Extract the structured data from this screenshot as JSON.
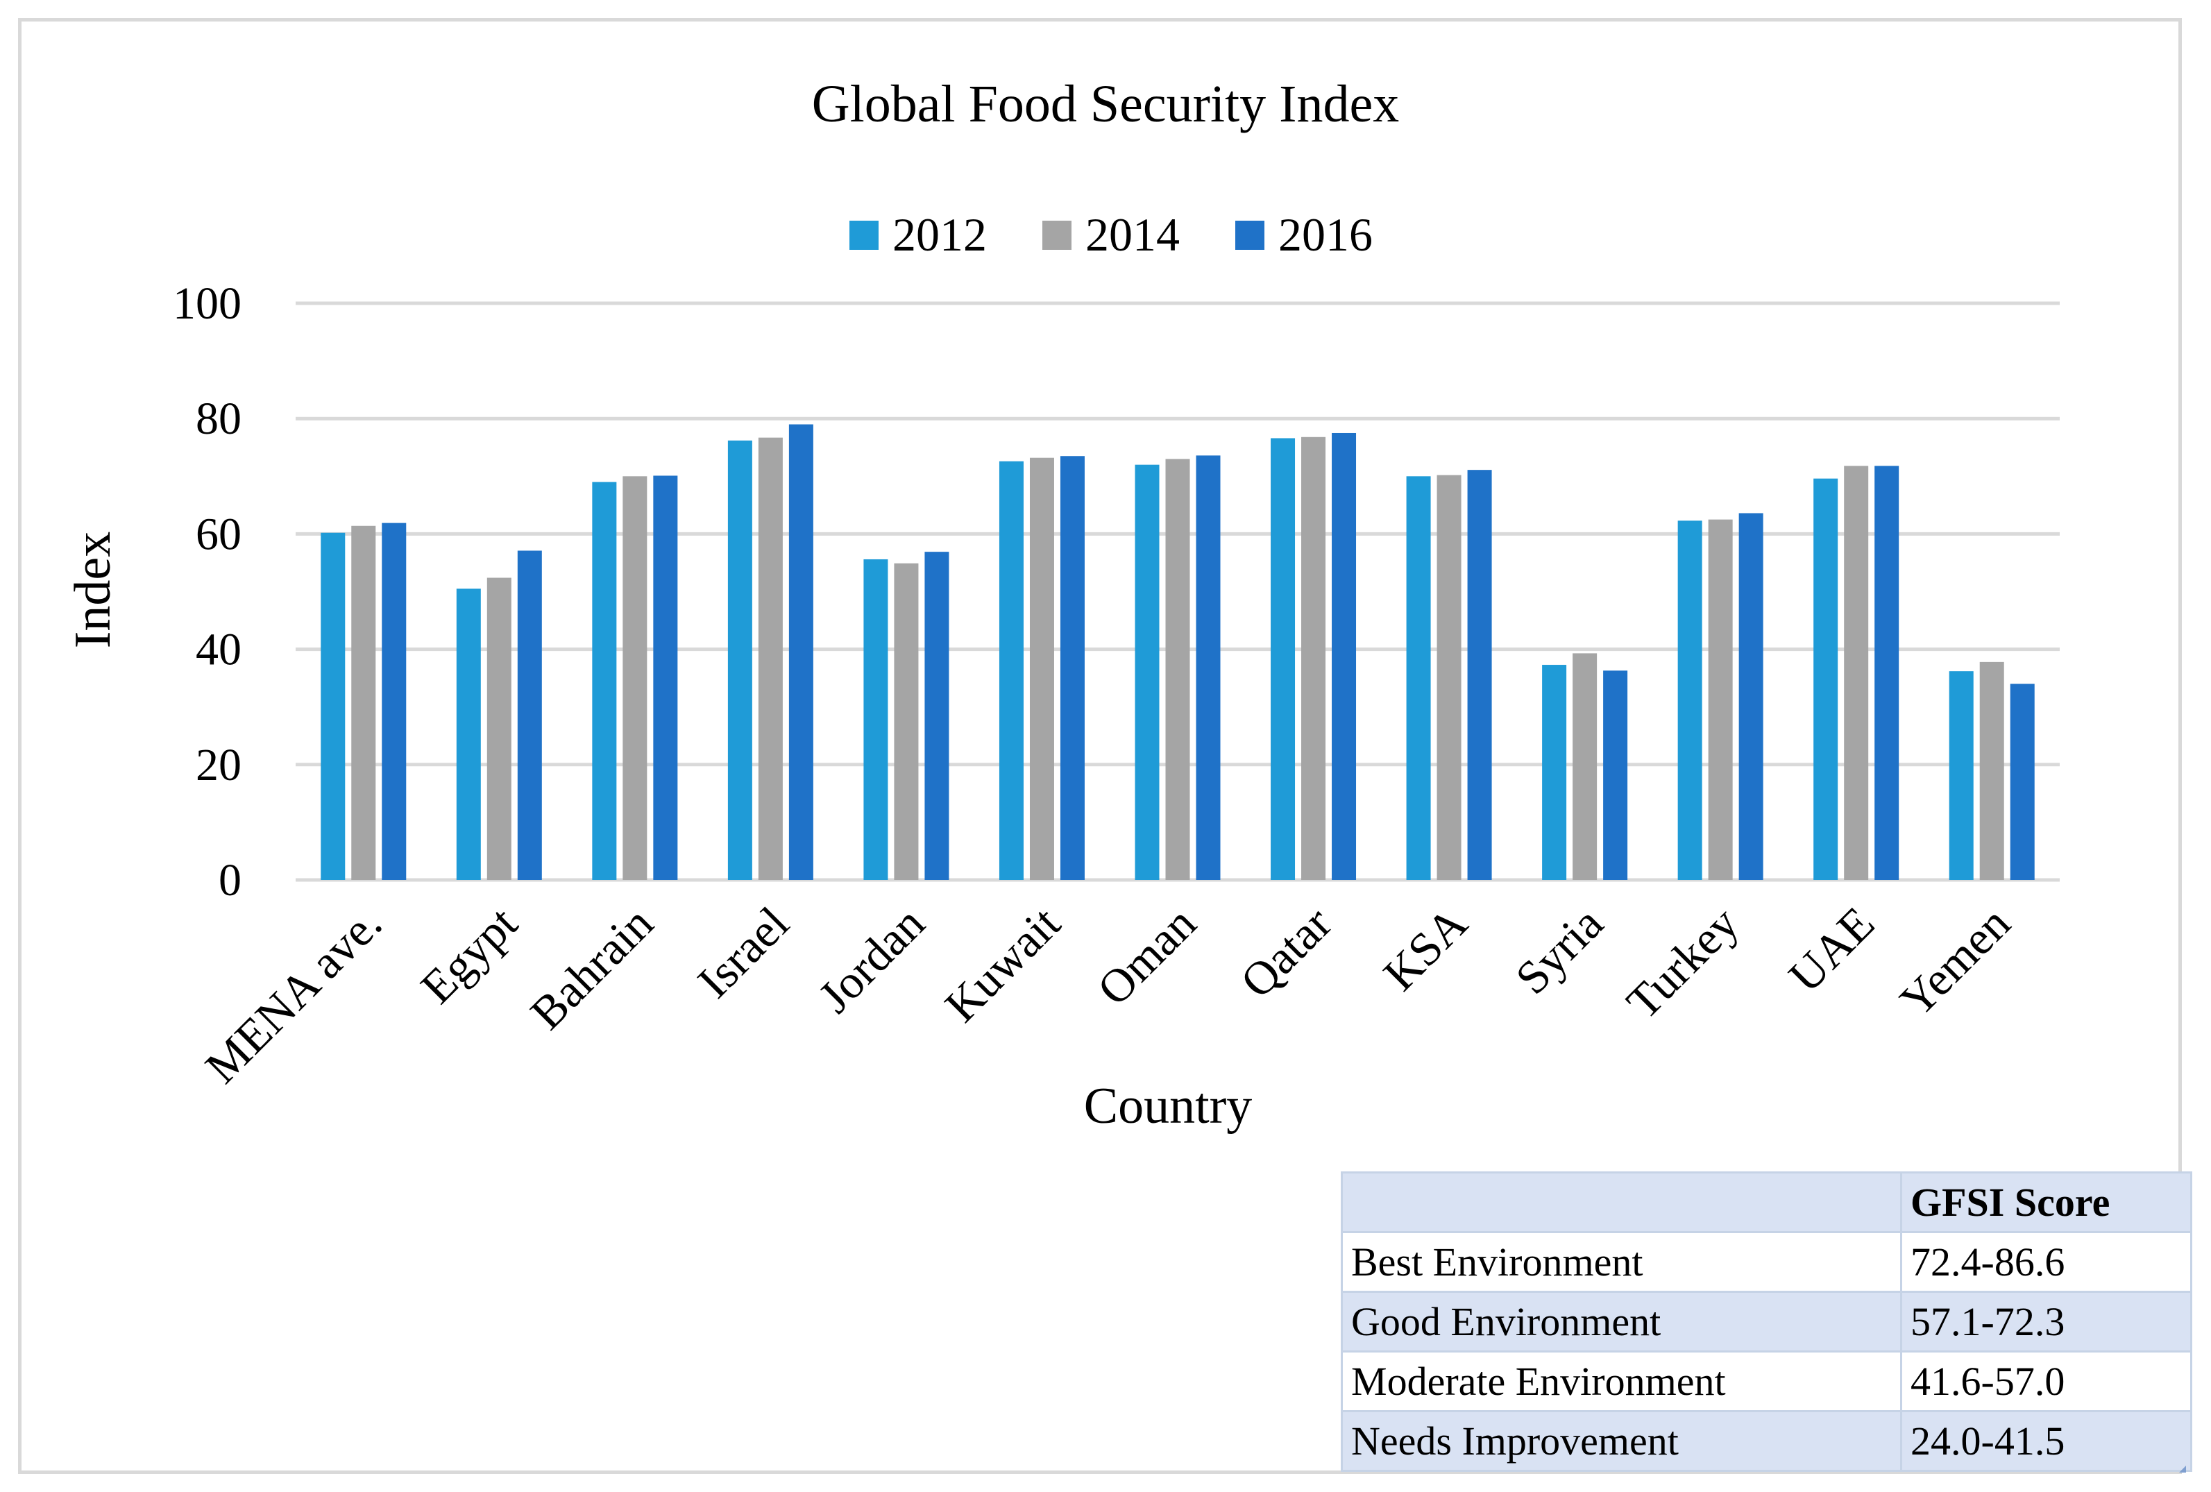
{
  "chart_data": {
    "type": "bar",
    "title": "Global Food Security Index",
    "xlabel": "Country",
    "ylabel": "Index",
    "ylim": [
      0,
      100
    ],
    "yticks": [
      "0",
      "20",
      "40",
      "60",
      "80",
      "100"
    ],
    "grid": true,
    "legend_position": "top-center",
    "categories": [
      "MENA ave.",
      "Egypt",
      "Bahrain",
      "Israel",
      "Jordan",
      "Kuwait",
      "Oman",
      "Qatar",
      "KSA",
      "Syria",
      "Turkey",
      "UAE",
      "Yemen"
    ],
    "series": [
      {
        "name": "2012",
        "color": "#1f9bd7",
        "values": [
          60.2,
          50.5,
          69.0,
          76.2,
          55.6,
          72.6,
          72.0,
          76.6,
          70.0,
          37.3,
          62.3,
          69.6,
          36.2
        ]
      },
      {
        "name": "2014",
        "color": "#a5a5a5",
        "values": [
          61.4,
          52.4,
          70.0,
          76.7,
          54.9,
          73.2,
          73.0,
          76.8,
          70.2,
          39.3,
          62.5,
          71.8,
          37.8
        ]
      },
      {
        "name": "2016",
        "color": "#1f72c8",
        "values": [
          61.9,
          57.1,
          70.1,
          79.0,
          56.9,
          73.5,
          73.6,
          77.5,
          71.1,
          36.3,
          63.6,
          71.8,
          34.0
        ]
      }
    ]
  },
  "gfsi_table": {
    "header": [
      "",
      "GFSI Score"
    ],
    "rows": [
      {
        "label": "Best Environment",
        "range": "72.4-86.6"
      },
      {
        "label": "Good Environment",
        "range": "57.1-72.3"
      },
      {
        "label": "Moderate Environment",
        "range": "41.6-57.0"
      },
      {
        "label": "Needs Improvement",
        "range": "24.0-41.5"
      }
    ]
  }
}
